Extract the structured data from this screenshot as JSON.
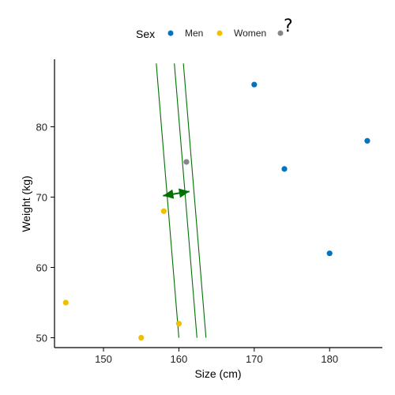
{
  "chart_data": {
    "type": "scatter",
    "xlabel": "Size (cm)",
    "ylabel": "Weight (kg)",
    "xlim": [
      143.5,
      187
    ],
    "ylim": [
      48.6,
      89.6
    ],
    "x_ticks": [
      150,
      160,
      170,
      180
    ],
    "y_ticks": [
      50,
      60,
      70,
      80
    ],
    "grid": false,
    "legend": {
      "title": "Sex",
      "position": "top",
      "unknown_marker": "?",
      "items": [
        {
          "label": "Men",
          "color": "#0073C2"
        },
        {
          "label": "Women",
          "color": "#EFC000"
        },
        {
          "label": "",
          "color": "#868686"
        }
      ]
    },
    "series": [
      {
        "name": "Men",
        "color": "#0073C2",
        "points": [
          [
            170,
            86
          ],
          [
            174,
            74
          ],
          [
            180,
            62
          ],
          [
            185,
            78
          ]
        ]
      },
      {
        "name": "Women",
        "color": "#EFC000",
        "points": [
          [
            145,
            55
          ],
          [
            155,
            50
          ],
          [
            158,
            68
          ],
          [
            160,
            52
          ]
        ]
      },
      {
        "name": "",
        "color": "#868686",
        "points": [
          [
            161,
            75
          ]
        ]
      }
    ],
    "annotations": {
      "color": "#007000",
      "separator_lines": [
        {
          "from": [
            157,
            89
          ],
          "to": [
            160,
            50
          ]
        },
        {
          "from": [
            159.4,
            89
          ],
          "to": [
            162.4,
            50
          ]
        },
        {
          "from": [
            160.6,
            89
          ],
          "to": [
            163.6,
            50
          ]
        }
      ],
      "margin_arrow": {
        "from": [
          157.9,
          70.2
        ],
        "to": [
          161.4,
          70.8
        ]
      }
    }
  }
}
